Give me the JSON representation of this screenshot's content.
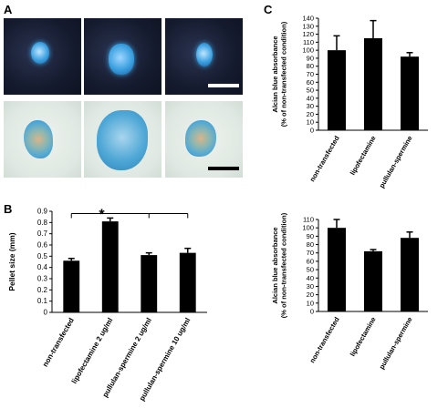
{
  "panel_labels": {
    "a": "A",
    "b": "B",
    "c": "C"
  },
  "photos": {
    "top_row": [
      "blue-pellet-dark-field",
      "blue-pellet-dark-field",
      "blue-pellet-dark-field"
    ],
    "bottom_row": [
      "alcian-stained-pellet-section",
      "alcian-stained-pellet-section",
      "alcian-stained-pellet-section"
    ],
    "colors": {
      "dark_bg": "#151b2e",
      "light_bg": "#dfe8e2",
      "pellet_blue": "#3aa0e0",
      "alcian_blue": "#4fa8d6"
    }
  },
  "significance": "*",
  "chart_data": [
    {
      "id": "B",
      "type": "bar",
      "categories": [
        "non-transfected",
        "lipofectamine 2 ug/ml",
        "pullulan-spermine 2 ug/ml",
        "pullulan-spermine 10 ug/ml"
      ],
      "values": [
        0.46,
        0.81,
        0.51,
        0.53
      ],
      "errors": [
        0.02,
        0.03,
        0.02,
        0.04
      ],
      "ylabel": "Pellet size (mm)",
      "ylim": [
        0,
        0.9
      ],
      "yticks": [
        "0",
        "0.1",
        "0.2",
        "0.3",
        "0.4",
        "0.5",
        "0.6",
        "0.7",
        "0.8",
        "0.9"
      ],
      "bar_color": "#000000",
      "grid": false
    },
    {
      "id": "C-top",
      "type": "bar",
      "categories": [
        "non-transfected",
        "lipofectamine",
        "pullulan-spermine"
      ],
      "values": [
        100,
        115,
        92
      ],
      "errors": [
        18,
        22,
        5
      ],
      "ylabel": "Alcian blue absorbance (% of non-transfected condition)",
      "ylabel_lines": [
        "Alcian blue absorbance",
        "(% of non-transfected condition)"
      ],
      "ylim": [
        0,
        140
      ],
      "yticks": [
        "0",
        "10",
        "20",
        "30",
        "40",
        "50",
        "60",
        "70",
        "80",
        "90",
        "100",
        "110",
        "120",
        "130",
        "140"
      ],
      "bar_color": "#000000",
      "grid": false
    },
    {
      "id": "C-bottom",
      "type": "bar",
      "categories": [
        "non-transfected",
        "lipofectamine",
        "pullulan-spermine"
      ],
      "values": [
        100,
        72,
        88
      ],
      "errors": [
        10,
        2,
        7
      ],
      "ylabel": "Alcian blue absorbance (% of non-transfected condition)",
      "ylabel_lines": [
        "Alcian blue absorbance",
        "(% of non-transfected condition)"
      ],
      "ylim": [
        0,
        110
      ],
      "yticks": [
        "0",
        "10",
        "20",
        "30",
        "40",
        "50",
        "60",
        "70",
        "80",
        "90",
        "100",
        "110"
      ],
      "bar_color": "#000000",
      "grid": false
    }
  ]
}
